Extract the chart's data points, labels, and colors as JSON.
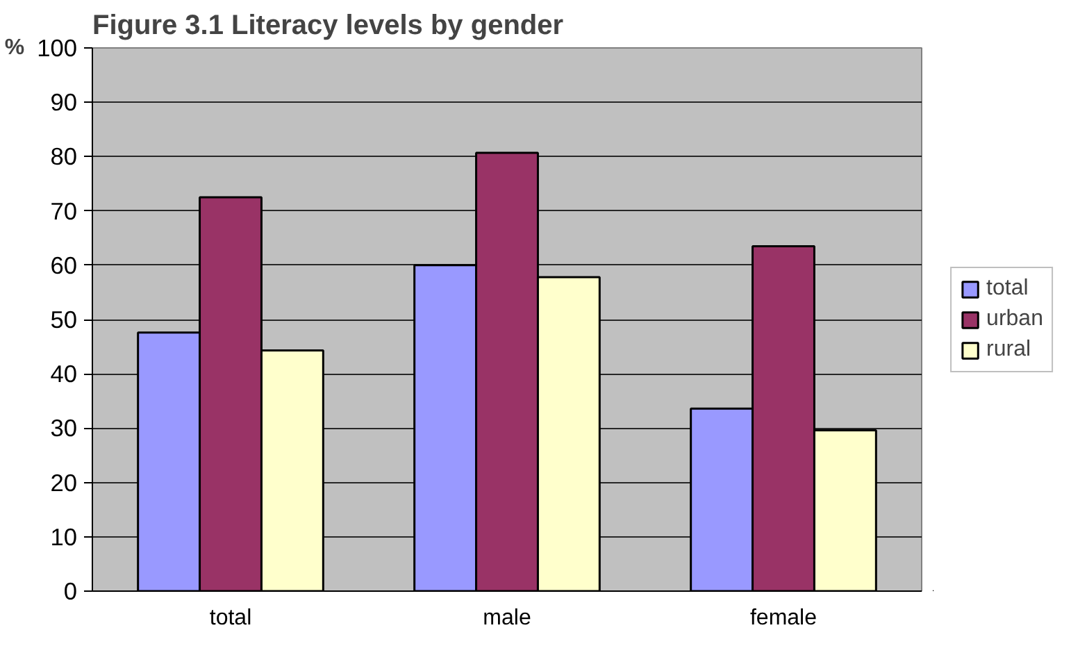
{
  "chart_data": {
    "type": "bar",
    "title": "Figure 3.1 Literacy levels by gender",
    "ylabel": "%",
    "categories": [
      "total",
      "male",
      "female"
    ],
    "series": [
      {
        "name": "total",
        "color": "#9999ff",
        "values": [
          47.6,
          60.0,
          33.6
        ]
      },
      {
        "name": "urban",
        "color": "#993366",
        "values": [
          72.5,
          80.7,
          63.5
        ]
      },
      {
        "name": "rural",
        "color": "#ffffcc",
        "values": [
          44.3,
          57.8,
          29.6
        ]
      }
    ],
    "ylim": [
      0,
      100
    ],
    "yticks": [
      0,
      10,
      20,
      30,
      40,
      50,
      60,
      70,
      80,
      90,
      100
    ],
    "grid": "y",
    "legend": "right"
  }
}
